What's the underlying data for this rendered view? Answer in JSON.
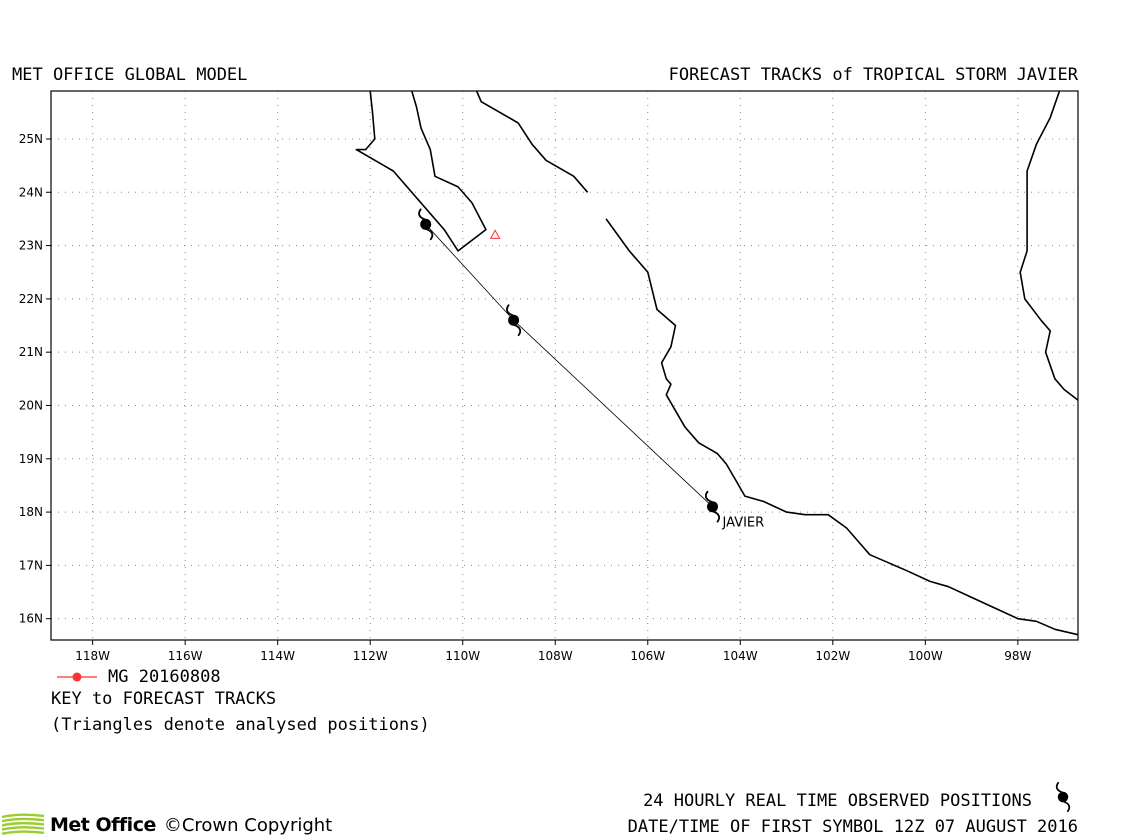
{
  "header": {
    "left_title": "MET OFFICE GLOBAL MODEL",
    "right_title": "FORECAST TRACKS of TROPICAL STORM JAVIER"
  },
  "map": {
    "lon_range": [
      -118.9,
      -96.7
    ],
    "lat_range": [
      15.6,
      25.9
    ],
    "lon_ticks": [
      {
        "value": -118,
        "label": "118W"
      },
      {
        "value": -116,
        "label": "116W"
      },
      {
        "value": -114,
        "label": "114W"
      },
      {
        "value": -112,
        "label": "112W"
      },
      {
        "value": -110,
        "label": "110W"
      },
      {
        "value": -108,
        "label": "108W"
      },
      {
        "value": -106,
        "label": "106W"
      },
      {
        "value": -104,
        "label": "104W"
      },
      {
        "value": -102,
        "label": "102W"
      },
      {
        "value": -100,
        "label": "100W"
      },
      {
        "value": -98,
        "label": "98W"
      }
    ],
    "lat_ticks": [
      {
        "value": 16,
        "label": "16N"
      },
      {
        "value": 17,
        "label": "17N"
      },
      {
        "value": 18,
        "label": "18N"
      },
      {
        "value": 19,
        "label": "19N"
      },
      {
        "value": 20,
        "label": "20N"
      },
      {
        "value": 21,
        "label": "21N"
      },
      {
        "value": 22,
        "label": "22N"
      },
      {
        "value": 23,
        "label": "23N"
      },
      {
        "value": 24,
        "label": "24N"
      },
      {
        "value": 25,
        "label": "25N"
      }
    ],
    "grid": "dotted",
    "storm_label": "JAVIER",
    "observed_positions": [
      {
        "lon": -104.6,
        "lat": 18.1
      },
      {
        "lon": -108.9,
        "lat": 21.6
      },
      {
        "lon": -110.8,
        "lat": 23.4
      }
    ],
    "analysed_positions": [
      {
        "lon": -109.3,
        "lat": 23.2
      }
    ],
    "coastlines": [
      [
        [
          -112.0,
          25.9
        ],
        [
          -111.95,
          25.5
        ],
        [
          -111.9,
          25.0
        ],
        [
          -112.1,
          24.8
        ],
        [
          -112.3,
          24.8
        ],
        [
          -111.5,
          24.4
        ],
        [
          -110.8,
          23.7
        ],
        [
          -110.4,
          23.3
        ],
        [
          -110.1,
          22.9
        ],
        [
          -109.8,
          23.1
        ],
        [
          -109.5,
          23.3
        ],
        [
          -109.8,
          23.8
        ],
        [
          -110.1,
          24.1
        ],
        [
          -110.6,
          24.3
        ],
        [
          -110.7,
          24.8
        ],
        [
          -110.9,
          25.2
        ],
        [
          -111.0,
          25.6
        ],
        [
          -111.1,
          25.9
        ]
      ],
      [
        [
          -109.7,
          25.9
        ],
        [
          -109.6,
          25.7
        ],
        [
          -109.2,
          25.5
        ],
        [
          -108.8,
          25.3
        ],
        [
          -108.5,
          24.9
        ],
        [
          -108.2,
          24.6
        ],
        [
          -107.6,
          24.3
        ],
        [
          -107.3,
          24.0
        ]
      ],
      [
        [
          -106.9,
          23.5
        ],
        [
          -106.4,
          22.9
        ],
        [
          -106.0,
          22.5
        ],
        [
          -105.8,
          21.8
        ],
        [
          -105.4,
          21.5
        ],
        [
          -105.5,
          21.1
        ],
        [
          -105.7,
          20.8
        ],
        [
          -105.6,
          20.5
        ],
        [
          -105.5,
          20.4
        ],
        [
          -105.6,
          20.2
        ],
        [
          -105.2,
          19.6
        ],
        [
          -104.9,
          19.3
        ],
        [
          -104.5,
          19.1
        ],
        [
          -104.3,
          18.9
        ],
        [
          -104.1,
          18.6
        ],
        [
          -103.9,
          18.3
        ],
        [
          -103.5,
          18.2
        ],
        [
          -103.0,
          18.0
        ],
        [
          -102.6,
          17.95
        ],
        [
          -102.1,
          17.95
        ],
        [
          -101.7,
          17.7
        ],
        [
          -101.4,
          17.4
        ],
        [
          -101.2,
          17.2
        ],
        [
          -100.8,
          17.05
        ],
        [
          -100.4,
          16.9
        ],
        [
          -99.9,
          16.7
        ],
        [
          -99.5,
          16.6
        ],
        [
          -99.0,
          16.4
        ],
        [
          -98.5,
          16.2
        ],
        [
          -98.0,
          16.0
        ],
        [
          -97.6,
          15.95
        ],
        [
          -97.2,
          15.8
        ],
        [
          -96.7,
          15.7
        ]
      ],
      [
        [
          -97.1,
          25.9
        ],
        [
          -97.3,
          25.4
        ],
        [
          -97.6,
          24.9
        ],
        [
          -97.8,
          24.4
        ],
        [
          -97.8,
          23.6
        ],
        [
          -97.8,
          22.9
        ],
        [
          -97.95,
          22.5
        ],
        [
          -97.85,
          22.0
        ],
        [
          -97.5,
          21.6
        ],
        [
          -97.3,
          21.4
        ],
        [
          -97.4,
          21.0
        ],
        [
          -97.2,
          20.5
        ],
        [
          -97.0,
          20.3
        ],
        [
          -96.7,
          20.1
        ]
      ]
    ]
  },
  "legend": {
    "track_label": "MG 20160808",
    "track_color": "#ff3333",
    "key_title": "KEY to FORECAST TRACKS",
    "key_note": "(Triangles denote analysed positions)"
  },
  "footer": {
    "observed_label": "24 HOURLY REAL TIME OBSERVED POSITIONS",
    "first_symbol_label": "DATE/TIME OF FIRST SYMBOL 12Z 07 AUGUST 2016",
    "logo_text": "Met Office",
    "copyright": "©Crown Copyright",
    "logo_color": "#9acd32"
  }
}
